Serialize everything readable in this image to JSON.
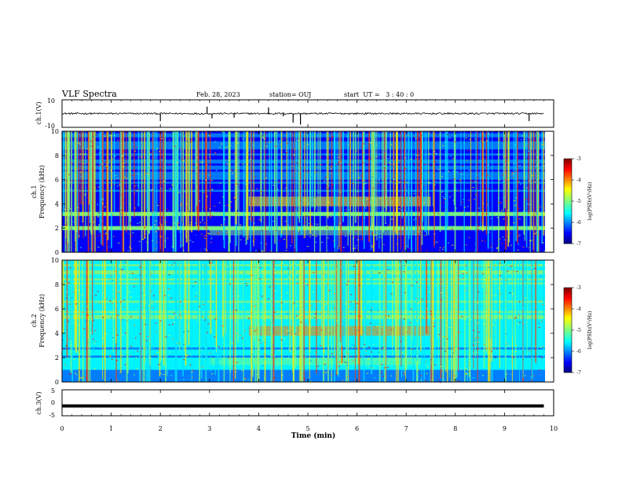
{
  "header": {
    "title": "VLF Spectra",
    "date": "Feb. 28, 2023",
    "station": "station= OUJ",
    "start": "start  UT =   3 : 40 : 0"
  },
  "chart_data": [
    {
      "type": "line",
      "panel": "ch1-waveform",
      "ylabel": "ch.1(V)",
      "ylim": [
        -10,
        10
      ],
      "y_ticks": [
        "10",
        "-10"
      ],
      "baseline": 0,
      "x": [
        0.0,
        0.5,
        1.0,
        1.5,
        2.0,
        2.5,
        2.95,
        3.05,
        3.5,
        4.0,
        4.2,
        4.5,
        4.7,
        4.85,
        5.0,
        5.5,
        6.0,
        6.5,
        7.0,
        7.5,
        8.0,
        8.5,
        9.0,
        9.5,
        9.8
      ],
      "y": [
        0,
        0.3,
        -0.2,
        0.2,
        -5.5,
        0.4,
        5.0,
        -3.5,
        -3.0,
        0.2,
        4.5,
        -2.0,
        -6.5,
        -8.0,
        0.3,
        0.2,
        -0.4,
        0.3,
        -0.3,
        0.2,
        -0.2,
        0.3,
        -0.3,
        -5.5,
        0.1
      ]
    },
    {
      "type": "heatmap",
      "panel": "ch1-spectrogram",
      "ylabel_line1": "ch.1",
      "ylabel_line2": "Frequency (kHz)",
      "ylim": [
        0,
        10
      ],
      "y_ticks": [
        "0",
        "2",
        "4",
        "6",
        "8",
        "10"
      ],
      "colorbar": {
        "label": "log(PSD)(V²/Hz)",
        "range": [
          -7,
          -3
        ],
        "ticks": [
          "-3",
          "-4",
          "-5",
          "-6",
          "-7"
        ]
      }
    },
    {
      "type": "heatmap",
      "panel": "ch2-spectrogram",
      "ylabel_line1": "ch.2",
      "ylabel_line2": "Frequency (kHz)",
      "ylim": [
        0,
        10
      ],
      "y_ticks": [
        "0",
        "2",
        "4",
        "6",
        "8",
        "10"
      ],
      "colorbar": {
        "label": "log(PSD)(V²/Hz)",
        "range": [
          -7,
          -3
        ],
        "ticks": [
          "-3",
          "-4",
          "-5",
          "-6",
          "-7"
        ]
      }
    },
    {
      "type": "line",
      "panel": "ch3-waveform",
      "ylabel": "ch.3(V)",
      "ylim": [
        -5,
        5
      ],
      "y_ticks": [
        "5",
        "0",
        "-5"
      ],
      "x": [
        0,
        9.8
      ],
      "y": [
        -1.2,
        -1.2
      ]
    }
  ],
  "x_axis": {
    "label": "Time (min)",
    "range": [
      0,
      10
    ],
    "ticks": [
      "0",
      "1",
      "2",
      "3",
      "4",
      "5",
      "6",
      "7",
      "8",
      "9",
      "10"
    ]
  },
  "colors": {
    "axis": "#000000",
    "background": "#ffffff",
    "colormap": [
      "#00007f",
      "#0000ff",
      "#007fff",
      "#00ffff",
      "#7fff7f",
      "#ffff00",
      "#ff7f00",
      "#ff0000",
      "#7f0000"
    ]
  }
}
